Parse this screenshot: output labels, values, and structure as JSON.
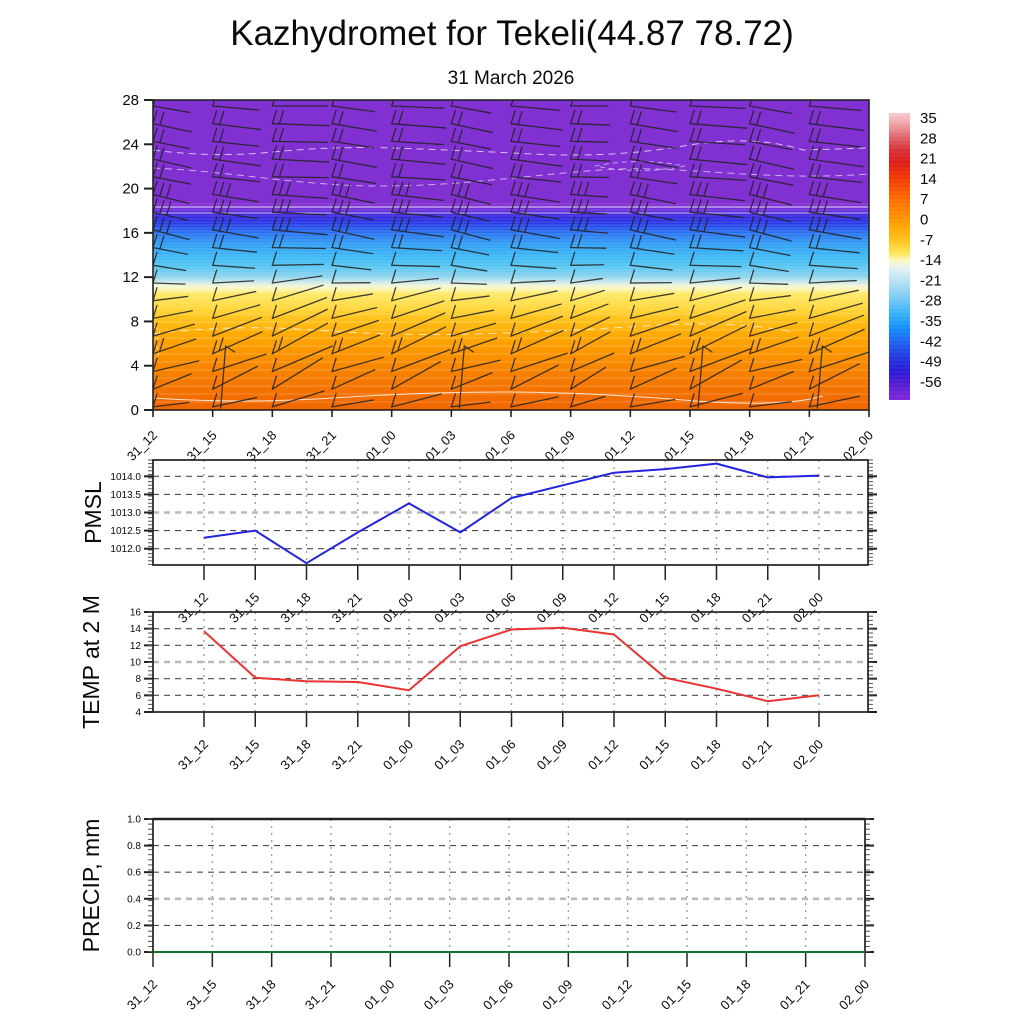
{
  "title": "Kazhydromet for Tekeli(44.87 78.72)",
  "subtitle": "31 March 2026",
  "time_labels": [
    "31_12",
    "31_15",
    "31_18",
    "31_21",
    "01_00",
    "01_03",
    "01_06",
    "01_09",
    "01_12",
    "01_15",
    "01_18",
    "01_21",
    "02_00"
  ],
  "colors": {
    "pmsl_line": "#2323dd",
    "temp_line": "#ea3333",
    "precip_line": "#0a7a2a",
    "barb": "#222222",
    "grid_h": "#4a4a4a",
    "grid_h_mid": "#b9b9b9",
    "grid_v": "#9a9a9a",
    "axis": "#222222",
    "contour": "#ffffff"
  },
  "chart_data": {
    "cross_section": {
      "type": "heatmap",
      "title": "wind barbs and temperature (shaded) vs height",
      "x": [
        "31_12",
        "31_15",
        "31_18",
        "31_21",
        "01_00",
        "01_03",
        "01_06",
        "01_09",
        "01_12",
        "01_15",
        "01_18",
        "01_21",
        "02_00"
      ],
      "y_ticks": [
        "28",
        "24",
        "20",
        "16",
        "12",
        "8",
        "4",
        "0"
      ],
      "y_range": [
        0,
        28
      ],
      "grid": false,
      "field_stops": [
        [
          "0%",
          "#8130d2"
        ],
        [
          "34%",
          "#8130d2"
        ],
        [
          "35.5%",
          "#6c2fda"
        ],
        [
          "37.5%",
          "#3629de"
        ],
        [
          "39%",
          "#2b2fe4"
        ],
        [
          "41%",
          "#2450ec"
        ],
        [
          "43%",
          "#2a74f0"
        ],
        [
          "46.5%",
          "#2f9df4"
        ],
        [
          "50%",
          "#38b4f4"
        ],
        [
          "53.5%",
          "#52c4f2"
        ],
        [
          "57%",
          "#8cd4ee"
        ],
        [
          "58.6%",
          "#c6e6ec"
        ],
        [
          "60%",
          "#f4f7d6"
        ],
        [
          "61.5%",
          "#fdf3a2"
        ],
        [
          "62.5%",
          "#ffe964"
        ],
        [
          "67.9%",
          "#ffd334"
        ],
        [
          "71%",
          "#ffc01c"
        ],
        [
          "75%",
          "#ffad06"
        ],
        [
          "82%",
          "#fb9300"
        ],
        [
          "89.3%",
          "#f67d00"
        ],
        [
          "96.4%",
          "#f26c00"
        ],
        [
          "100%",
          "#f16600"
        ]
      ],
      "colorbar": {
        "tick_labels": [
          "35",
          "28",
          "21",
          "14",
          "7",
          "0",
          "-7",
          "-14",
          "-21",
          "-28",
          "-35",
          "-42",
          "-49",
          "-56"
        ],
        "stops": [
          [
            "0%",
            "#f6ccd2"
          ],
          [
            "4%",
            "#eea0a6"
          ],
          [
            "8%",
            "#e26a70"
          ],
          [
            "13%",
            "#d63038"
          ],
          [
            "17%",
            "#dd1d1d"
          ],
          [
            "22%",
            "#ef3505"
          ],
          [
            "28%",
            "#fa5f00"
          ],
          [
            "34%",
            "#ff8400"
          ],
          [
            "40%",
            "#ffa800"
          ],
          [
            "45%",
            "#ffc822"
          ],
          [
            "49%",
            "#ffe65e"
          ],
          [
            "51.5%",
            "#fcf8c4"
          ],
          [
            "54%",
            "#e4f2f2"
          ],
          [
            "59%",
            "#b4dff4"
          ],
          [
            "64%",
            "#7fccf4"
          ],
          [
            "70%",
            "#37b2f8"
          ],
          [
            "75%",
            "#118ffa"
          ],
          [
            "80%",
            "#2161f0"
          ],
          [
            "85%",
            "#2238e0"
          ],
          [
            "90%",
            "#2a1ad8"
          ],
          [
            "94%",
            "#4f1bd2"
          ],
          [
            "100%",
            "#8428d8"
          ]
        ]
      },
      "wind_rows": [
        {
          "angle": -5,
          "ticks": 1,
          "len": 46
        },
        {
          "angle": -7,
          "ticks": 2,
          "len": 48
        },
        {
          "angle": -6,
          "ticks": 2,
          "len": 46
        },
        {
          "angle": -8,
          "ticks": 2,
          "len": 48
        },
        {
          "angle": -6,
          "ticks": 2,
          "len": 47
        },
        {
          "angle": -9,
          "ticks": 3,
          "len": 46
        },
        {
          "angle": -8,
          "ticks": 3,
          "len": 45
        },
        {
          "angle": -10,
          "ticks": 3,
          "len": 46
        },
        {
          "angle": -6,
          "ticks": 2,
          "len": 44
        },
        {
          "angle": -4,
          "ticks": 1,
          "len": 42
        },
        {
          "angle": 3,
          "ticks": 1,
          "len": 41
        },
        {
          "angle": 12,
          "ticks": 1,
          "len": 44
        },
        {
          "angle": 16,
          "ticks": 1,
          "len": 49
        },
        {
          "angle": 21,
          "ticks": 1,
          "len": 52
        },
        {
          "angle": 24,
          "ticks": 2,
          "len": 54
        },
        {
          "angle": 18,
          "ticks": 1,
          "len": 56
        },
        {
          "angle": 27,
          "ticks": 1,
          "len": 50
        },
        {
          "angle": 12,
          "ticks": 1,
          "len": 45
        }
      ],
      "calm_staffs": [
        {
          "col": 1
        },
        {
          "col": 5
        },
        {
          "col": 9
        },
        {
          "col": 11
        }
      ]
    },
    "pmsl": {
      "type": "line",
      "label": "PMSL",
      "x": [
        "31_12",
        "31_15",
        "31_18",
        "31_21",
        "01_00",
        "01_03",
        "01_06",
        "01_09",
        "01_12",
        "01_15",
        "01_18",
        "01_21",
        "02_00"
      ],
      "values": [
        1012.3,
        1012.5,
        1011.6,
        1012.45,
        1013.25,
        1012.45,
        1013.4,
        1013.75,
        1014.1,
        1014.2,
        1014.35,
        1013.97,
        1014.02
      ],
      "y_tick_labels": [
        "1014.0",
        "1013.5",
        "1013.0",
        "1012.5",
        "1012.0"
      ],
      "y_tick_vals": [
        1014.0,
        1013.5,
        1013.0,
        1012.5,
        1012.0
      ],
      "ylim": [
        1011.55,
        1014.45
      ],
      "mid_grid": 1013.0
    },
    "temp": {
      "type": "line",
      "label": "TEMP at 2 M",
      "x": [
        "31_12",
        "31_15",
        "31_18",
        "31_21",
        "01_00",
        "01_03",
        "01_06",
        "01_09",
        "01_12",
        "01_15",
        "01_18",
        "01_21",
        "02_00"
      ],
      "values": [
        13.7,
        8.1,
        7.7,
        7.6,
        6.6,
        11.9,
        13.9,
        14.1,
        13.3,
        8.1,
        6.8,
        5.3,
        6.0
      ],
      "y_tick_labels": [
        "16",
        "14",
        "12",
        "10",
        "8",
        "6",
        "4"
      ],
      "y_tick_vals": [
        16,
        14,
        12,
        10,
        8,
        6,
        4
      ],
      "ylim": [
        4,
        16
      ],
      "mid_grid": 10
    },
    "precip": {
      "type": "line",
      "label": "PRECIP, mm",
      "x": [
        "31_12",
        "31_15",
        "31_18",
        "31_21",
        "01_00",
        "01_03",
        "01_06",
        "01_09",
        "01_12",
        "01_15",
        "01_18",
        "01_21",
        "02_00"
      ],
      "values": [
        0.0,
        0.0,
        0.0,
        0.0,
        0.0,
        0.0,
        0.0,
        0.0,
        0.0,
        0.0,
        0.0,
        0.0,
        0.0
      ],
      "y_tick_labels": [
        "1.0",
        "0.8",
        "0.6",
        "0.4",
        "0.2",
        "0.0"
      ],
      "y_tick_vals": [
        1.0,
        0.8,
        0.6,
        0.4,
        0.2,
        0.0
      ],
      "ylim": [
        0.0,
        1.0
      ],
      "mid_grid": 0.4
    }
  }
}
